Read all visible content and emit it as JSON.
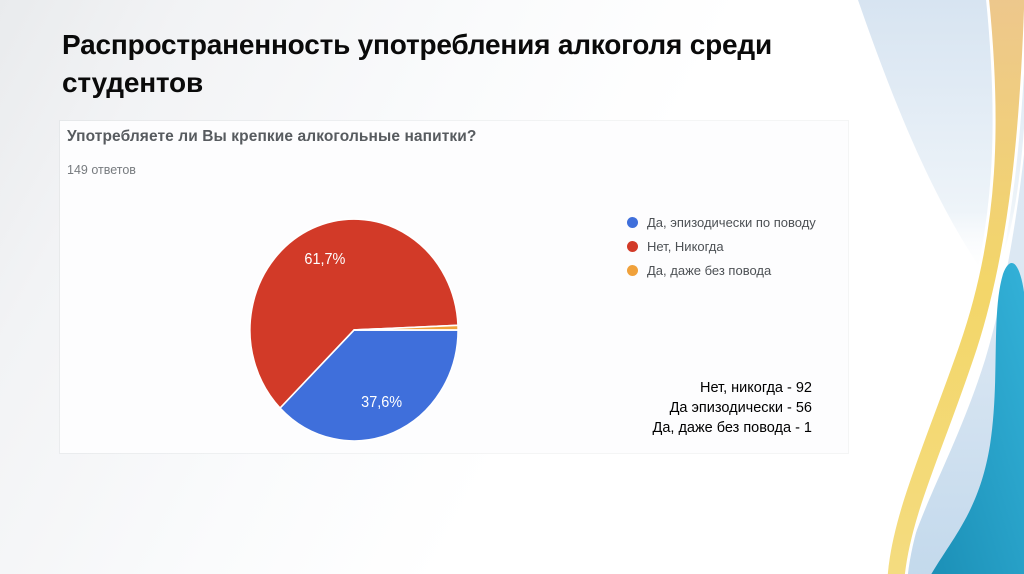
{
  "slide": {
    "title": "Распространенность употребления алкоголя среди студентов",
    "title_lines": [
      "Распространенность употребления алкоголя среди",
      "студентов"
    ]
  },
  "form_panel": {
    "question": "Употребляете ли Вы крепкие алкогольные напитки?",
    "responses_count": "149 ответов"
  },
  "chart_data": {
    "type": "pie",
    "title": "Употребляете ли Вы крепкие алкогольные напитки?",
    "responses_total": 149,
    "start_angle": "3-o-clock",
    "direction": "clockwise",
    "legend_position": "right",
    "series": [
      {
        "label": "Да, эпизодически по поводу",
        "value": 56,
        "percent": 37.6,
        "percent_label": "37,6%",
        "color": "#3f6fdb"
      },
      {
        "label": "Нет, Никогда",
        "value": 92,
        "percent": 61.7,
        "percent_label": "61,7%",
        "color": "#d23a28"
      },
      {
        "label": "Да, даже без повода",
        "value": 1,
        "percent": 0.7,
        "percent_label": "",
        "color": "#f0a13b"
      }
    ]
  },
  "summary": {
    "lines": [
      "Нет, никогда - 92",
      "Да эпизодически - 56",
      "Да, даже без повода - 1"
    ]
  },
  "decoration_colors": {
    "teal_dark": "#1b8fb6",
    "teal_light": "#33b1d8",
    "ribbon_tan": "#edc78d",
    "ribbon_yellow": "#f3d669",
    "pale_blue": "#d7e4f1",
    "pale_blue_deep": "#c3d9ec"
  }
}
